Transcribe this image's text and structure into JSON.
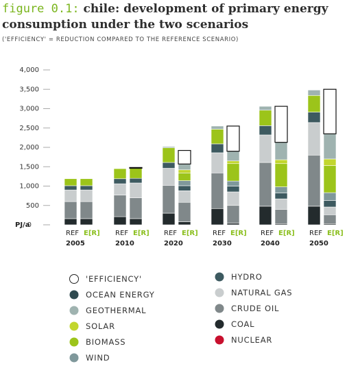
{
  "header": {
    "figure_label": "figure 0.1:",
    "title": "chile: development of primary energy consumption under the two scenarios",
    "subtitle": "('EFFICIENCY' = REDUCTION COMPARED TO THE REFERENCE SCENARIO)"
  },
  "colors": {
    "efficiency": "#ffffff",
    "ocean_energy": "#2f4a4f",
    "geothermal": "#9fb3b0",
    "solar": "#c2d62e",
    "biomass": "#9cc41a",
    "wind": "#7f989b",
    "hydro": "#3d5a60",
    "natural_gas": "#c9cdce",
    "crude_oil": "#80888a",
    "coal": "#232b2d",
    "nuclear": "#c8102e",
    "er_label": "#8bbf1e"
  },
  "chart_data": {
    "type": "bar",
    "stacked": true,
    "ylabel": "PJ/a",
    "ylim": [
      0,
      4000
    ],
    "yticks": [
      "4,000",
      "3,500",
      "3,000",
      "2,500",
      "2,000",
      "1,500",
      "1,000",
      "500",
      "0"
    ],
    "ytick_values": [
      4000,
      3500,
      3000,
      2500,
      2000,
      1500,
      1000,
      500,
      0
    ],
    "years": [
      "2005",
      "2010",
      "2020",
      "2030",
      "2040",
      "2050"
    ],
    "scenario_labels": [
      "REF",
      "E[R]"
    ],
    "stack_order": [
      "coal",
      "crude_oil",
      "natural_gas",
      "hydro",
      "wind",
      "biomass",
      "solar",
      "geothermal",
      "ocean_energy",
      "efficiency"
    ],
    "bars": [
      {
        "year": "2005",
        "scenario": "REF",
        "coal": 160,
        "crude_oil": 440,
        "natural_gas": 300,
        "hydro": 110,
        "wind": 0,
        "biomass": 180,
        "solar": 0,
        "geothermal": 0,
        "ocean_energy": 0,
        "efficiency": 0
      },
      {
        "year": "2005",
        "scenario": "E[R]",
        "coal": 160,
        "crude_oil": 440,
        "natural_gas": 300,
        "hydro": 110,
        "wind": 0,
        "biomass": 180,
        "solar": 0,
        "geothermal": 0,
        "ocean_energy": 0,
        "efficiency": 0
      },
      {
        "year": "2010",
        "scenario": "REF",
        "coal": 210,
        "crude_oil": 560,
        "natural_gas": 290,
        "hydro": 130,
        "wind": 0,
        "biomass": 260,
        "solar": 0,
        "geothermal": 0,
        "ocean_energy": 0,
        "efficiency": 0
      },
      {
        "year": "2010",
        "scenario": "E[R]",
        "coal": 160,
        "crude_oil": 540,
        "natural_gas": 380,
        "hydro": 120,
        "wind": 0,
        "biomass": 260,
        "solar": 0,
        "geothermal": 0,
        "ocean_energy": 0,
        "efficiency": 20
      },
      {
        "year": "2020",
        "scenario": "REF",
        "coal": 300,
        "crude_oil": 720,
        "natural_gas": 440,
        "hydro": 150,
        "wind": 0,
        "biomass": 380,
        "solar": 0,
        "geothermal": 30,
        "ocean_energy": 0,
        "efficiency": 0
      },
      {
        "year": "2020",
        "scenario": "E[R]",
        "coal": 80,
        "crude_oil": 500,
        "natural_gas": 300,
        "hydro": 130,
        "wind": 130,
        "biomass": 200,
        "solar": 80,
        "geothermal": 150,
        "ocean_energy": 0,
        "efficiency": 350
      },
      {
        "year": "2030",
        "scenario": "REF",
        "coal": 420,
        "crude_oil": 920,
        "natural_gas": 520,
        "hydro": 230,
        "wind": 0,
        "biomass": 380,
        "solar": 0,
        "geothermal": 80,
        "ocean_energy": 0,
        "efficiency": 0
      },
      {
        "year": "2030",
        "scenario": "E[R]",
        "coal": 40,
        "crude_oil": 460,
        "natural_gas": 350,
        "hydro": 150,
        "wind": 130,
        "biomass": 450,
        "solar": 70,
        "geothermal": 250,
        "ocean_energy": 0,
        "efficiency": 650
      },
      {
        "year": "2040",
        "scenario": "REF",
        "coal": 480,
        "crude_oil": 1130,
        "natural_gas": 710,
        "hydro": 240,
        "wind": 0,
        "biomass": 400,
        "solar": 0,
        "geothermal": 100,
        "ocean_energy": 0,
        "efficiency": 0
      },
      {
        "year": "2040",
        "scenario": "E[R]",
        "coal": 30,
        "crude_oil": 370,
        "natural_gas": 270,
        "hydro": 150,
        "wind": 160,
        "biomass": 600,
        "solar": 100,
        "geothermal": 450,
        "ocean_energy": 0,
        "efficiency": 930
      },
      {
        "year": "2050",
        "scenario": "REF",
        "coal": 480,
        "crude_oil": 1320,
        "natural_gas": 840,
        "hydro": 270,
        "wind": 0,
        "biomass": 430,
        "solar": 0,
        "geothermal": 140,
        "ocean_energy": 0,
        "efficiency": 0
      },
      {
        "year": "2050",
        "scenario": "E[R]",
        "coal": 30,
        "crude_oil": 230,
        "natural_gas": 200,
        "hydro": 170,
        "wind": 200,
        "biomass": 700,
        "solar": 170,
        "geothermal": 650,
        "ocean_energy": 0,
        "efficiency": 1150
      }
    ],
    "legend_placement": "bottom",
    "legend": [
      {
        "key": "efficiency",
        "label": "'EFFICIENCY'"
      },
      {
        "key": "ocean_energy",
        "label": "OCEAN ENERGY"
      },
      {
        "key": "geothermal",
        "label": "GEOTHERMAL"
      },
      {
        "key": "solar",
        "label": "SOLAR"
      },
      {
        "key": "biomass",
        "label": "BIOMASS"
      },
      {
        "key": "wind",
        "label": "WIND"
      },
      {
        "key": "hydro",
        "label": "HYDRO"
      },
      {
        "key": "natural_gas",
        "label": "NATURAL GAS"
      },
      {
        "key": "crude_oil",
        "label": "CRUDE OIL"
      },
      {
        "key": "coal",
        "label": "COAL"
      },
      {
        "key": "nuclear",
        "label": "NUCLEAR"
      }
    ]
  }
}
